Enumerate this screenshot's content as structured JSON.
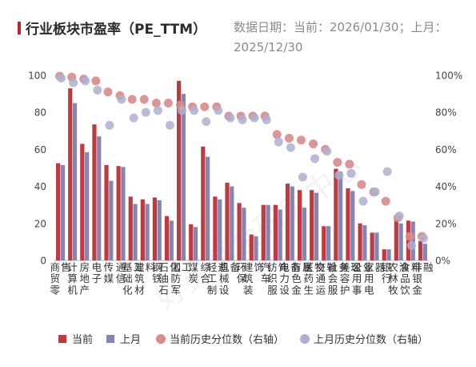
{
  "title": "行业板块市盈率（PE_TTM）",
  "subtitle": "数据日期：当前：2026/01/30；上月：2025/12/30",
  "colors": {
    "current_bar": "#c0393f",
    "prev_bar": "#8585b5",
    "current_dot": "#d98a8a",
    "prev_dot": "#aeb0cf",
    "title_accent": "#c0262d"
  },
  "chart_data": {
    "type": "bar",
    "categories": [
      "商贸零售",
      "计算机",
      "房地产",
      "电子",
      "传媒",
      "通信",
      "基础化工",
      "建筑材料",
      "钢铁",
      "石油石化",
      "国防军工",
      "煤炭",
      "综合",
      "轻工制造",
      "机械设备",
      "环保",
      "建筑装饰",
      "汽车",
      "纺织服饰",
      "电力设备",
      "有色金属",
      "医药生物",
      "交通运输",
      "社会服务",
      "美容护理",
      "公用事业",
      "家用电器",
      "银行",
      "农林牧渔",
      "食品饮料",
      "非银金融"
    ],
    "y_left": {
      "min": 0,
      "max": 100,
      "ticks": [
        0,
        20,
        40,
        60,
        80,
        100
      ]
    },
    "y_right": {
      "min": 0,
      "max": 100,
      "ticks": [
        "0%",
        "20%",
        "40%",
        "60%",
        "80%",
        "100%"
      ]
    },
    "series": [
      {
        "name": "当前",
        "kind": "bar",
        "axis": "left",
        "values": [
          52.5,
          93,
          63,
          73.5,
          51.5,
          51,
          34.5,
          33,
          34,
          24,
          97,
          19.5,
          61.5,
          34.5,
          42,
          31,
          14,
          30,
          30,
          41.5,
          38,
          38,
          18.5,
          49.5,
          39,
          20,
          15,
          6,
          22,
          21.5,
          10.5
        ]
      },
      {
        "name": "上月",
        "kind": "bar",
        "axis": "left",
        "values": [
          51.5,
          85,
          58.5,
          67,
          43,
          50.5,
          30.5,
          30.5,
          32.5,
          21.5,
          90,
          18,
          56,
          33,
          40,
          28.5,
          13,
          30,
          27.5,
          40,
          28.5,
          36.5,
          18.5,
          48,
          37.5,
          19,
          15,
          6,
          20,
          21,
          9
        ]
      },
      {
        "name": "当前历史分位数（右轴）",
        "kind": "dot",
        "axis": "right",
        "values": [
          99.5,
          99,
          98,
          97,
          91,
          89,
          87,
          87,
          85,
          85,
          84,
          83,
          83,
          83,
          78,
          78,
          78,
          78,
          68,
          66,
          65,
          63,
          60,
          53,
          52,
          41,
          37,
          32,
          23,
          13,
          13
        ]
      },
      {
        "name": "上月历史分位数（右轴）",
        "kind": "dot",
        "axis": "right",
        "values": [
          98.5,
          96,
          97,
          92,
          73,
          87,
          77,
          80,
          81,
          73,
          81,
          81,
          75,
          81,
          77,
          76,
          77,
          76,
          64,
          61,
          45,
          55,
          59,
          46,
          47,
          32,
          37,
          48,
          24,
          8,
          12
        ]
      }
    ],
    "legend_position": "bottom",
    "watermark": "好买基金研究中心"
  }
}
